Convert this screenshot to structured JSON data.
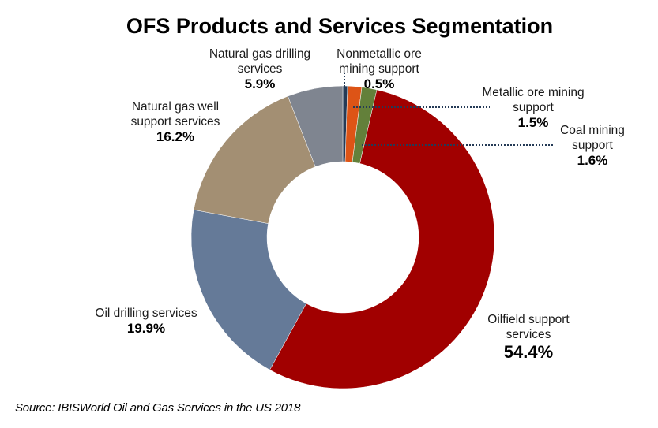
{
  "chart_data": {
    "type": "pie",
    "variant": "donut",
    "title": "OFS Products and Services Segmentation",
    "start_angle": "12 o'clock",
    "direction": "clockwise",
    "unit": "%",
    "slices": [
      {
        "key": "nonmetallic",
        "label_lines": [
          "Nonmetallic ore",
          "mining support"
        ],
        "value": 0.5,
        "value_label": "0.5%",
        "color": "#243a56"
      },
      {
        "key": "metallic",
        "label_lines": [
          "Metallic ore mining",
          "support"
        ],
        "value": 1.5,
        "value_label": "1.5%",
        "color": "#dd5416"
      },
      {
        "key": "coal",
        "label_lines": [
          "Coal mining",
          "support"
        ],
        "value": 1.6,
        "value_label": "1.6%",
        "color": "#63803a"
      },
      {
        "key": "oilfield",
        "label_lines": [
          "Oilfield support",
          "services"
        ],
        "value": 54.4,
        "value_label": "54.4%",
        "color": "#a10000"
      },
      {
        "key": "oil-drilling",
        "label_lines": [
          "Oil drilling services"
        ],
        "value": 19.9,
        "value_label": "19.9%",
        "color": "#657a98"
      },
      {
        "key": "natgas-well",
        "label_lines": [
          "Natural gas well",
          "support services"
        ],
        "value": 16.2,
        "value_label": "16.2%",
        "color": "#a38f73"
      },
      {
        "key": "natgas-drilling",
        "label_lines": [
          "Natural gas drilling",
          "services"
        ],
        "value": 5.9,
        "value_label": "5.9%",
        "color": "#7f8590"
      }
    ],
    "leader_line_color": "#243a56"
  },
  "source": "Source: IBISWorld Oil and Gas Services in the US 2018"
}
